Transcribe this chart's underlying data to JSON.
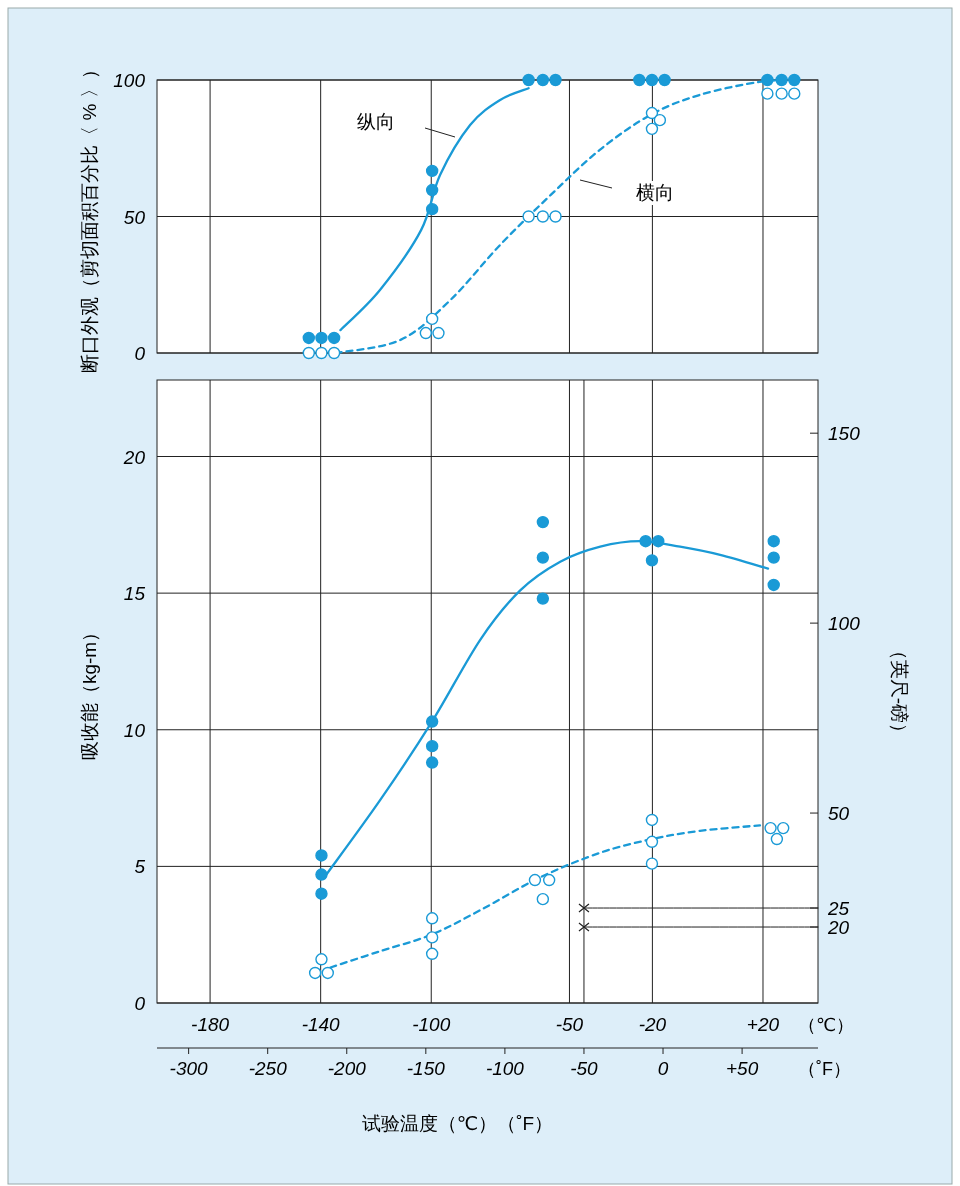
{
  "chart_data": [
    {
      "type": "scatter",
      "ylabel": "断口外观（剪切面积百分比〈 % 〉）",
      "xlim": [
        -320,
        98
      ],
      "ylim": [
        0,
        100
      ],
      "yticks": [
        0,
        50,
        100
      ],
      "tick_labels": "y",
      "grid": true,
      "annotations": [
        "纵向",
        "横向"
      ],
      "series": [
        {
          "type": "line",
          "color": "#1a9ad6",
          "line_style": "solid",
          "x": [
            -204,
            -179,
            -153,
            -141,
            -122,
            -103,
            -85
          ],
          "values": [
            8.4,
            23.1,
            45,
            65.2,
            83.5,
            92.7,
            97
          ]
        },
        {
          "type": "line",
          "color": "#1a9ad6",
          "line_style": "dashed",
          "x": [
            -207,
            -166,
            -134.5,
            -103,
            -71,
            -40,
            -8,
            23,
            61,
            87
          ],
          "values": [
            0,
            4.8,
            19.4,
            39.6,
            57.9,
            74.4,
            87.2,
            94.5,
            99.3,
            100
          ]
        },
        {
          "color": "#1a9ad6",
          "marker": "circle",
          "x": [
            -224,
            -216,
            -208,
            -146,
            -146,
            -146,
            -85,
            -76,
            -68,
            -15,
            -7,
            1,
            66,
            75,
            83
          ],
          "values": [
            5.5,
            5.5,
            5.5,
            66.7,
            59.7,
            52.7,
            100,
            100,
            100,
            100,
            100,
            100,
            100,
            100,
            100
          ]
        },
        {
          "color": "#1a9ad6",
          "marker": "circle-open",
          "x": [
            -224,
            -216,
            -208,
            -150,
            -146,
            -142,
            -85,
            -76,
            -68,
            -7,
            -7,
            -2,
            66,
            75,
            83
          ],
          "values": [
            0,
            0,
            0,
            7.3,
            12.5,
            7.3,
            50,
            50,
            50,
            87.9,
            82.1,
            85.3,
            95,
            95,
            95
          ]
        }
      ]
    },
    {
      "type": "scatter",
      "ylabel": "吸收能（kg-m）",
      "y2label": "（英尺-磅）",
      "xlabel": "试验温度（℃）（˚F）",
      "x2label": "（℃）",
      "annotations": [
        "（˚F）"
      ],
      "xlim": [
        -320,
        98
      ],
      "xticks": [
        -300,
        -250,
        -200,
        -150,
        -100,
        -50,
        0,
        {
          "value": 50,
          "label": "+50"
        }
      ],
      "x2lim": [
        -199.2,
        39.9
      ],
      "x2ticks": [
        -180,
        -140,
        -100,
        -50,
        -20,
        {
          "value": 20,
          "label": "+20"
        }
      ],
      "ylim": [
        0,
        22.8
      ],
      "yticks": [
        0,
        5,
        10,
        15,
        20
      ],
      "y2lim": [
        0,
        164
      ],
      "y2ticks": [
        20,
        25,
        50,
        100,
        150
      ],
      "grid": true,
      "ref_lines": [
        {
          "axis": "x",
          "value": -50,
          "label": null
        }
      ],
      "series": [
        {
          "type": "line",
          "color": "#1a9ad6",
          "line_style": "solid",
          "x": [
            -213.5,
            -178.7,
            -146.5,
            -115.5,
            -90.3,
            -65,
            -39.7,
            -14.5,
            10.8,
            36.1,
            66.4
          ],
          "values": [
            4.65,
            7.44,
            10.26,
            13.3,
            15.1,
            16.15,
            16.7,
            16.9,
            16.7,
            16.4,
            15.9
          ]
        },
        {
          "type": "line",
          "color": "#1a9ad6",
          "line_style": "dashed",
          "x": [
            -210.3,
            -178.7,
            -146.5,
            -115.5,
            -77.6,
            -39.7,
            -6.9,
            23.4,
            61.3
          ],
          "values": [
            1.3,
            1.9,
            2.5,
            3.4,
            4.6,
            5.5,
            6.0,
            6.3,
            6.5
          ]
        },
        {
          "color": "#1a9ad6",
          "marker": "circle",
          "x": [
            -216,
            -216,
            -216,
            -146,
            -146,
            -146,
            -76,
            -76,
            -76,
            -11,
            -3,
            -7,
            70,
            70,
            70
          ],
          "values": [
            5.4,
            4.7,
            4.0,
            10.3,
            9.4,
            8.8,
            17.6,
            16.3,
            14.8,
            16.9,
            16.9,
            16.2,
            16.9,
            16.3,
            15.3
          ]
        },
        {
          "color": "#1a9ad6",
          "marker": "circle-open",
          "x": [
            -220,
            -212,
            -216,
            -146,
            -146,
            -146,
            -81,
            -72,
            -76,
            -7,
            -7,
            -7,
            68,
            76,
            72
          ],
          "values": [
            1.1,
            1.1,
            1.6,
            3.1,
            2.4,
            1.8,
            4.5,
            4.5,
            3.8,
            6.7,
            5.9,
            5.1,
            6.4,
            6.4,
            6.0
          ]
        },
        {
          "type": "line",
          "color": "#222222",
          "line_style": "solid",
          "axis": "y2",
          "x": [
            -50,
            98
          ],
          "values": [
            25,
            25
          ]
        },
        {
          "type": "line",
          "color": "#222222",
          "line_style": "solid",
          "axis": "y2",
          "x": [
            -50,
            98
          ],
          "values": [
            20,
            20
          ]
        },
        {
          "color": "#222222",
          "marker": "cross",
          "axis": "y2",
          "x": [
            -50,
            -50
          ],
          "values": [
            25,
            20
          ]
        }
      ]
    }
  ]
}
